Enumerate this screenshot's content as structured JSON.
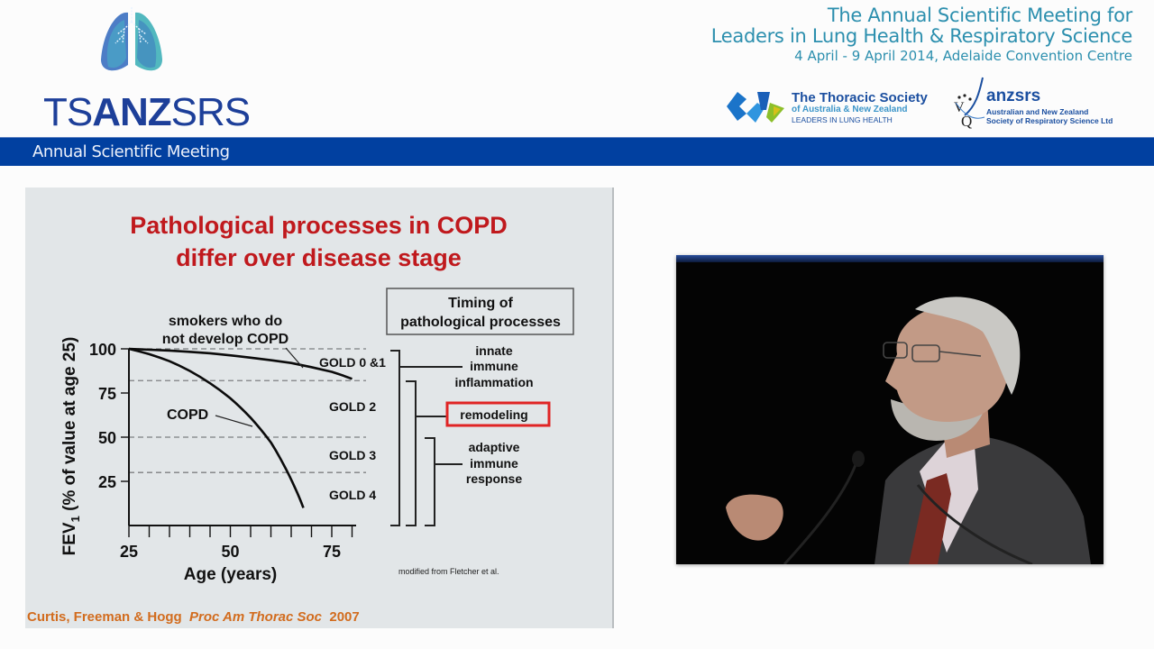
{
  "header": {
    "org_logo": {
      "name": "TSANZSRS",
      "prefix": "TS",
      "bold": "ANZ",
      "suffix": "SRS",
      "icon": "lungs-icon"
    },
    "banner_label": "Annual Scientific Meeting",
    "meeting_title_line1": "The Annual Scientific Meeting for",
    "meeting_title_line2": "Leaders in Lung Health & Respiratory Science",
    "meeting_dates": "4 April - 9 April 2014, Adelaide Convention Centre",
    "sponsor_logos": [
      {
        "name": "The Thoracic Society",
        "sub": "of Australia & New Zealand",
        "tag": "LEADERS IN LUNG HEALTH"
      },
      {
        "name": "anzsrs",
        "sub1": "Australian and New Zealand",
        "sub2": "Society of Respiratory Science Ltd"
      }
    ],
    "colors": {
      "banner": "#0140a0",
      "title_teal": "#2c8fae",
      "logo_blue": "#1d3f99"
    }
  },
  "slide": {
    "title_line1": "Pathological processes in COPD",
    "title_line2": "differ over disease stage",
    "timing_box_line1": "Timing of",
    "timing_box_line2": "pathological processes",
    "processes": [
      {
        "lines": [
          "innate",
          "immune",
          "inflammation"
        ],
        "highlighted": false
      },
      {
        "lines": [
          "remodeling"
        ],
        "highlighted": true
      },
      {
        "lines": [
          "adaptive",
          "immune",
          "response"
        ],
        "highlighted": false
      }
    ],
    "modified_note": "modified from Fletcher et al.",
    "citation_authors": "Curtis, Freeman & Hogg",
    "citation_journal": "Proc Am Thorac Soc",
    "citation_year": "2007",
    "colors": {
      "title": "#c0191d",
      "highlight_box": "#e02424",
      "citation": "#d26c1e",
      "background": "#e2e6e8"
    }
  },
  "chart_data": {
    "type": "line",
    "title": "Pathological processes in COPD differ over disease stage",
    "xlabel": "Age (years)",
    "ylabel": "FEV1 (% of value at age 25)",
    "xlim": [
      25,
      80
    ],
    "ylim": [
      0,
      100
    ],
    "xticks": [
      25,
      50,
      75
    ],
    "yticks": [
      25,
      50,
      75,
      100
    ],
    "minor_xtick_step": 5,
    "grid": false,
    "series": [
      {
        "name": "smokers who do not develop COPD",
        "x": [
          25,
          35,
          45,
          55,
          65,
          75,
          80
        ],
        "y": [
          100,
          99,
          97.5,
          95,
          92,
          87,
          83
        ]
      },
      {
        "name": "COPD",
        "x": [
          25,
          30,
          35,
          40,
          45,
          50,
          55,
          60,
          63,
          66,
          68
        ],
        "y": [
          100,
          97,
          93,
          87.5,
          80.5,
          72,
          61,
          47,
          35,
          21,
          10
        ]
      }
    ],
    "reference_lines": [
      {
        "y": 100,
        "style": "dashed"
      },
      {
        "y": 82,
        "style": "dashed"
      },
      {
        "y": 50,
        "style": "dashed"
      },
      {
        "y": 30,
        "style": "dashed"
      }
    ],
    "stage_labels": [
      {
        "label": "GOLD 0 &1",
        "y_range": [
          82,
          100
        ]
      },
      {
        "label": "GOLD 2",
        "y_range": [
          50,
          82
        ]
      },
      {
        "label": "GOLD 3",
        "y_range": [
          30,
          50
        ]
      },
      {
        "label": "GOLD 4",
        "y_range": [
          0,
          30
        ]
      }
    ],
    "annotations": [
      {
        "text": "smokers who do not develop COPD",
        "points_to": "smokers who do not develop COPD",
        "at_x": 67
      },
      {
        "text": "COPD",
        "points_to": "COPD",
        "at_x": 56
      }
    ]
  },
  "video": {
    "label": "Speaker video feed",
    "colors": {
      "background": "#040404",
      "top_bar": "#2a4f9e"
    }
  }
}
